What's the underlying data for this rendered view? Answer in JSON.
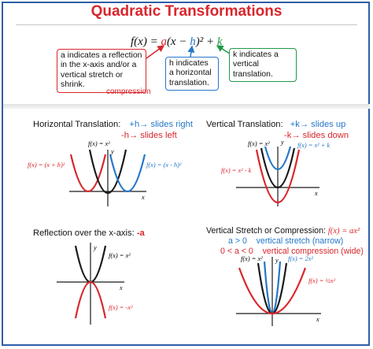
{
  "title": "Quadratic Transformations",
  "equation": {
    "lhs": "f(x) = ",
    "a": "a",
    "open": "(x − ",
    "h": "h",
    "close": ")² + ",
    "k": "k"
  },
  "notes": {
    "a": "a indicates a reflection in the x-axis and/or a vertical stretch or shrink.",
    "h": "h indicates a horizontal translation.",
    "k": "k indicates a vertical translation.",
    "compression": "compression"
  },
  "horizontal": {
    "heading": "Horizontal Translation:",
    "plus": "+h→ slides right",
    "minus": "-h→ slides left",
    "labels": {
      "parent": "f(x) = x²",
      "left": "f(x) = (x + h)²",
      "right": "f(x) = (x - h)²",
      "y": "y",
      "x": "x"
    }
  },
  "vertical": {
    "heading": "Vertical Translation:",
    "plus": "+k→ slides up",
    "minus": "-k→ slides down",
    "labels": {
      "parent": "f(x) = x²",
      "up": "f(x) = x² + k",
      "down": "f(x) = x² - k",
      "y": "y",
      "x": "x"
    }
  },
  "reflection": {
    "heading": "Reflection over the x-axis:",
    "a": "-a",
    "labels": {
      "parent": "f(x) = x²",
      "reflected": "f(x) = -x²",
      "y": "y",
      "x": "x"
    }
  },
  "stretch": {
    "heading": "Vertical Stretch or Compression:",
    "formula": "f(x) = ax²",
    "rule1": "a > 0    vertical stretch (narrow)",
    "rule2": "0 < a < 0    vertical compression (wide)",
    "labels": {
      "parent": "f(x) = x²",
      "stretch": "f(x) = 2x²",
      "compress": "f(x) = ½x²",
      "y": "y",
      "x": "x"
    }
  },
  "colors": {
    "red": "#d9262c",
    "blue": "#2577c9",
    "green": "#1d9a48",
    "black": "#1a1a1a",
    "frame": "#2f5fa8"
  }
}
